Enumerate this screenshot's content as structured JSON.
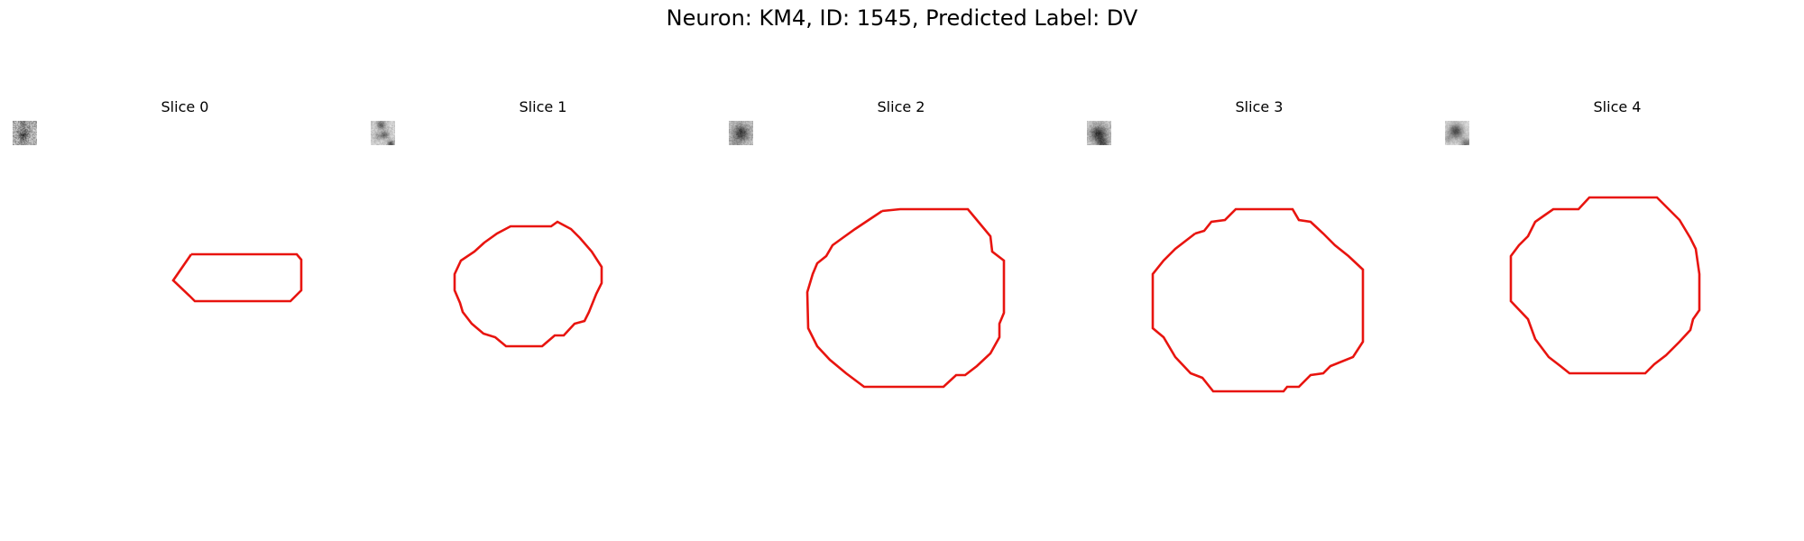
{
  "figure": {
    "title": "Neuron: KM4, ID: 1545, Predicted Label: DV",
    "contour_color": "#e8140f"
  },
  "panels": [
    {
      "title": "Slice 0",
      "background": "noisy mid-gray with dark vertical band",
      "contour": "small elongated"
    },
    {
      "title": "Slice 1",
      "background": "light gray with dark blob top and bottom-right",
      "contour": "oval"
    },
    {
      "title": "Slice 2",
      "background": "dark circular neuron body",
      "contour": "octagon"
    },
    {
      "title": "Slice 3",
      "background": "dark circular neuron body",
      "contour": "octagon"
    },
    {
      "title": "Slice 4",
      "background": "dark circular neuron body on light field",
      "contour": "octagon"
    }
  ]
}
